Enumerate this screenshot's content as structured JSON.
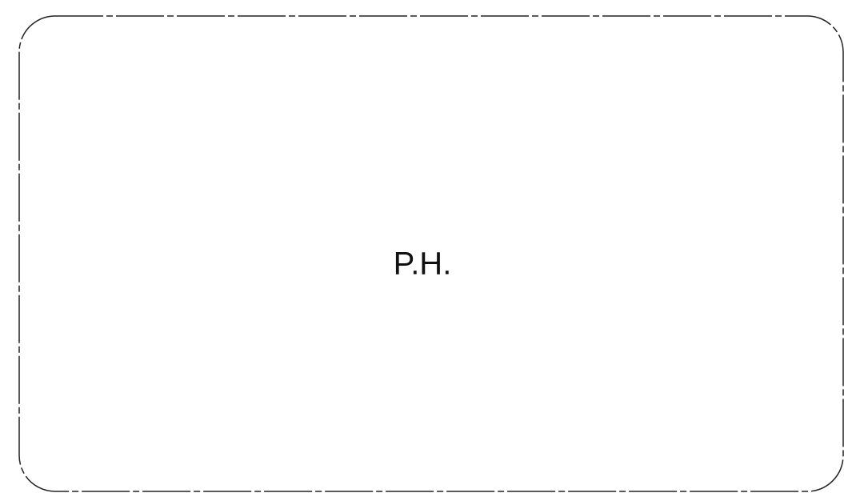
{
  "label": "P.H."
}
